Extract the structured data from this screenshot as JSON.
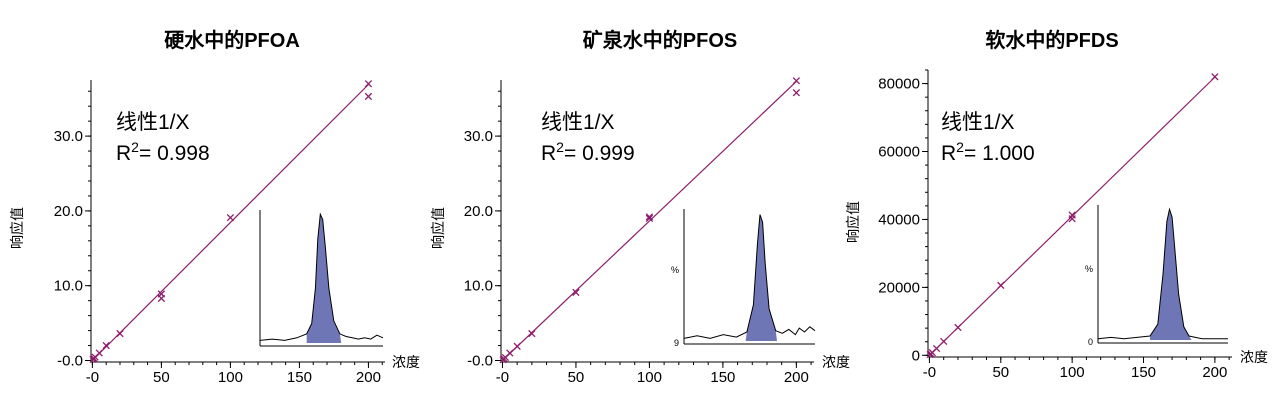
{
  "colors": {
    "fit_line": "#8e1d6b",
    "points": "#8e1d6b",
    "peak_fill": "#6e76b6",
    "axis": "#000000"
  },
  "chart_data": [
    {
      "type": "scatter",
      "title": "硬水中的PFOA",
      "xlabel": "浓度",
      "ylabel": "响应值",
      "xlim": [
        -1,
        212
      ],
      "ylim": [
        -0.2,
        37.5
      ],
      "xticks": [
        0,
        50,
        100,
        150,
        200
      ],
      "xtick_labels": [
        "-0",
        "50",
        "100",
        "150",
        "200"
      ],
      "yticks": [
        0,
        10,
        20,
        30
      ],
      "ytick_labels": [
        "-0.0",
        "10.0",
        "20.0",
        "30.0"
      ],
      "fit_type": "线性1/X",
      "r2_label": "R",
      "r2_sup": "2",
      "r2_text": "= 0.998",
      "fit_line": {
        "x": [
          0,
          200
        ],
        "y": [
          0.0,
          36.9
        ]
      },
      "points": {
        "x": [
          0.5,
          1,
          1,
          2,
          5,
          10,
          20,
          50,
          50,
          100,
          200,
          200
        ],
        "y": [
          0.15,
          0.3,
          0.2,
          0.45,
          1.0,
          2.0,
          3.6,
          8.9,
          8.3,
          19.1,
          37.0,
          35.3
        ]
      },
      "grid": false,
      "legend": "none",
      "inset": {
        "ytick_labels": [],
        "peak": {
          "t": [
            0.0,
            0.1,
            0.2,
            0.3,
            0.38,
            0.42,
            0.45,
            0.47,
            0.49,
            0.51,
            0.53,
            0.56,
            0.6,
            0.65,
            0.7,
            0.75,
            0.8,
            0.85,
            0.9,
            0.95,
            1.0
          ],
          "v": [
            0.02,
            0.03,
            0.02,
            0.04,
            0.07,
            0.15,
            0.42,
            0.8,
            0.99,
            0.95,
            0.75,
            0.42,
            0.17,
            0.07,
            0.05,
            0.04,
            0.03,
            0.04,
            0.03,
            0.06,
            0.04
          ]
        },
        "shade": [
          0.38,
          0.66
        ]
      }
    },
    {
      "type": "scatter",
      "title": "矿泉水中的PFOS",
      "xlabel": "浓度",
      "ylabel": "响应值",
      "xlim": [
        -1,
        212
      ],
      "ylim": [
        -0.2,
        37.5
      ],
      "xticks": [
        0,
        50,
        100,
        150,
        200
      ],
      "xtick_labels": [
        "-0",
        "50",
        "100",
        "150",
        "200"
      ],
      "yticks": [
        0,
        10,
        20,
        30
      ],
      "ytick_labels": [
        "-0.0",
        "10.0",
        "20.0",
        "30.0"
      ],
      "fit_type": "线性1/X",
      "r2_label": "R",
      "r2_sup": "2",
      "r2_text": "= 0.999",
      "fit_line": {
        "x": [
          0,
          200
        ],
        "y": [
          0.0,
          37.3
        ]
      },
      "points": {
        "x": [
          0.5,
          1,
          2,
          5,
          10,
          20,
          50,
          100,
          100,
          200,
          200
        ],
        "y": [
          0.1,
          0.25,
          0.4,
          1.0,
          1.9,
          3.6,
          9.1,
          19.2,
          19.0,
          37.4,
          35.8
        ]
      },
      "grid": false,
      "legend": "none",
      "inset": {
        "ytick_labels": [
          "%",
          "9"
        ],
        "peak": {
          "t": [
            0.0,
            0.1,
            0.2,
            0.3,
            0.4,
            0.48,
            0.53,
            0.56,
            0.58,
            0.6,
            0.62,
            0.65,
            0.7,
            0.75,
            0.8,
            0.85,
            0.88,
            0.92,
            0.96,
            1.0
          ],
          "v": [
            0.02,
            0.04,
            0.02,
            0.05,
            0.03,
            0.07,
            0.28,
            0.75,
            0.98,
            0.92,
            0.6,
            0.25,
            0.08,
            0.06,
            0.09,
            0.05,
            0.1,
            0.07,
            0.11,
            0.08
          ]
        },
        "shade": [
          0.47,
          0.71
        ]
      }
    },
    {
      "type": "scatter",
      "title": "软水中的PFDS",
      "xlabel": "浓度",
      "ylabel": "响应值",
      "xlim": [
        -1,
        212
      ],
      "ylim": [
        -500,
        84000
      ],
      "xticks": [
        0,
        50,
        100,
        150,
        200
      ],
      "xtick_labels": [
        "-0",
        "50",
        "100",
        "150",
        "200"
      ],
      "yticks": [
        0,
        20000,
        40000,
        60000,
        80000
      ],
      "ytick_labels": [
        "0",
        "20000",
        "40000",
        "60000",
        "80000"
      ],
      "fit_type": "线性1/X",
      "r2_label": "R",
      "r2_sup": "2",
      "r2_text": "= 1.000",
      "fit_line": {
        "x": [
          0,
          200
        ],
        "y": [
          0,
          81900
        ]
      },
      "points": {
        "x": [
          0.5,
          1,
          2,
          5,
          10,
          20,
          50,
          100,
          100,
          200
        ],
        "y": [
          200,
          400,
          800,
          2000,
          4100,
          8200,
          20600,
          41300,
          40200,
          82000
        ]
      },
      "grid": false,
      "legend": "none",
      "inset": {
        "ytick_labels": [
          "%",
          "0"
        ],
        "peak": {
          "t": [
            0.0,
            0.1,
            0.2,
            0.3,
            0.4,
            0.46,
            0.5,
            0.53,
            0.55,
            0.57,
            0.59,
            0.62,
            0.66,
            0.7,
            0.75,
            0.8,
            0.9,
            1.0
          ],
          "v": [
            0.01,
            0.02,
            0.01,
            0.02,
            0.03,
            0.12,
            0.5,
            0.9,
            0.99,
            0.93,
            0.7,
            0.35,
            0.1,
            0.03,
            0.02,
            0.01,
            0.01,
            0.01
          ]
        },
        "shade": [
          0.4,
          0.72
        ]
      }
    }
  ]
}
